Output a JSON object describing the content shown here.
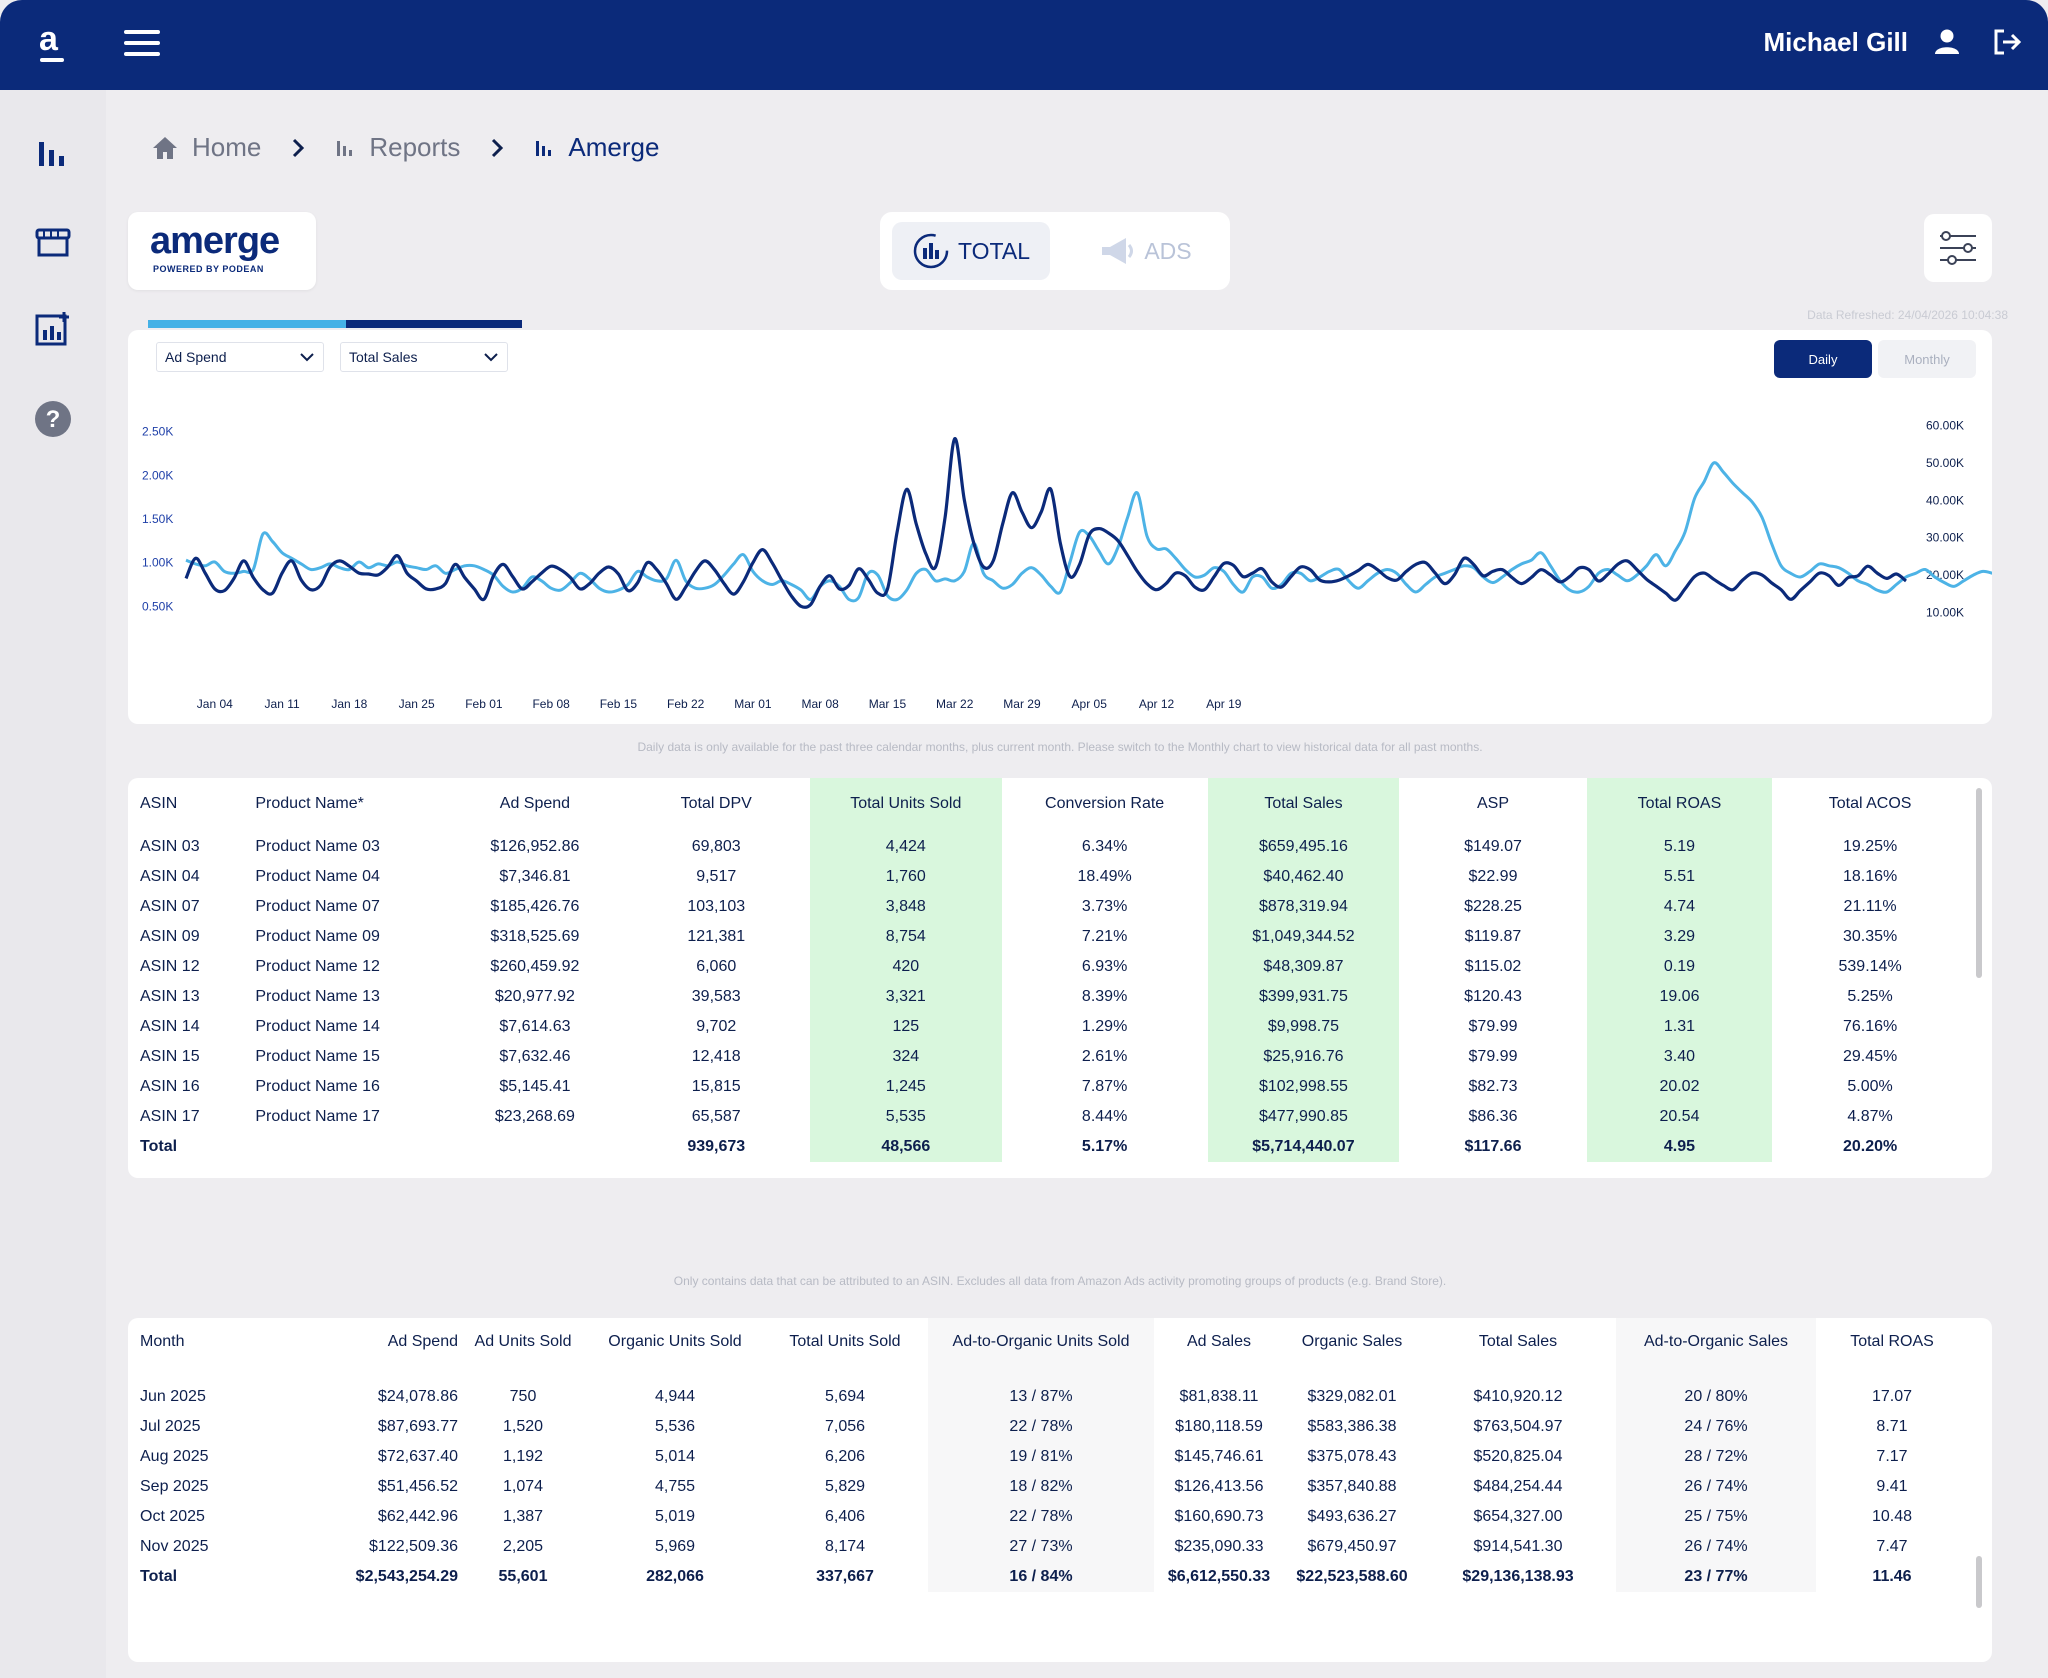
{
  "header": {
    "user_name": "Michael Gill"
  },
  "breadcrumb": {
    "home": "Home",
    "reports": "Reports",
    "current": "Amerge"
  },
  "brand": {
    "name": "amerge",
    "tagline": "POWERED BY PODEAN"
  },
  "view_toggle": {
    "total": "TOTAL",
    "ads": "ADS",
    "active": "TOTAL"
  },
  "data_refreshed": "Data Refreshed: 24/04/2026 10:04:38",
  "chart_controls": {
    "left_metric": "Ad Spend",
    "right_metric": "Total Sales",
    "daily": "Daily",
    "monthly": "Monthly",
    "active": "Daily"
  },
  "chart_data": {
    "type": "line",
    "x_labels": [
      "Jan 04",
      "Jan 11",
      "Jan 18",
      "Jan 25",
      "Feb 01",
      "Feb 08",
      "Feb 15",
      "Feb 22",
      "Mar 01",
      "Mar 08",
      "Mar 15",
      "Mar 22",
      "Mar 29",
      "Apr 05",
      "Apr 12",
      "Apr 19"
    ],
    "y_left_ticks": [
      "0.50K",
      "1.00K",
      "1.50K",
      "2.00K",
      "2.50K"
    ],
    "y_right_ticks": [
      "10.00K",
      "20.00K",
      "30.00K",
      "40.00K",
      "50.00K",
      "60.00K"
    ],
    "ylim_left": [
      0,
      3000
    ],
    "ylim_right": [
      0,
      70000
    ],
    "series": [
      {
        "name": "Ad Spend",
        "axis": "left",
        "color": "#0b2a7a",
        "values": [
          820,
          1050,
          880,
          700,
          680,
          820,
          1020,
          830,
          690,
          650,
          880,
          1020,
          800,
          690,
          740,
          950,
          1020,
          960,
          880,
          870,
          860,
          950,
          1080,
          880,
          790,
          700,
          700,
          760,
          980,
          830,
          700,
          580,
          850,
          980,
          840,
          700,
          780,
          880,
          960,
          920,
          830,
          700,
          760,
          880,
          950,
          870,
          680,
          770,
          1000,
          920,
          760,
          580,
          720,
          900,
          1020,
          920,
          760,
          640,
          780,
          1000,
          1150,
          1000,
          800,
          620,
          500,
          520,
          730,
          850,
          700,
          740,
          930,
          810,
          650,
          700,
          1350,
          1840,
          1440,
          1100,
          950,
          1520,
          2420,
          1720,
          1220,
          950,
          1020,
          1450,
          1800,
          1580,
          1400,
          1580,
          1840,
          1220,
          840,
          980,
          1320,
          1390,
          1340,
          1250,
          1080,
          900,
          760,
          690,
          760,
          880,
          850,
          720,
          690,
          840,
          990,
          970,
          840,
          880,
          930,
          780,
          720,
          840,
          950,
          920,
          800,
          780,
          800,
          850,
          910,
          980,
          920,
          830,
          800,
          900,
          980,
          1000,
          880,
          760,
          860,
          1050,
          980,
          850,
          900,
          920,
          830,
          760,
          830,
          920,
          860,
          780,
          840,
          940,
          920,
          790,
          870,
          980,
          1020,
          920,
          810,
          730,
          650,
          570,
          700,
          840,
          880,
          810,
          740,
          690,
          800,
          880,
          860,
          770,
          690,
          580,
          680,
          780,
          880,
          850,
          740,
          830,
          850,
          960,
          880,
          820,
          870,
          790
        ]
      },
      {
        "name": "Total Sales",
        "axis": "right",
        "color": "#4db3e6",
        "values": [
          24000,
          23000,
          22500,
          23500,
          21000,
          20500,
          21000,
          21500,
          31000,
          29000,
          26000,
          24500,
          23000,
          21500,
          22000,
          23000,
          22000,
          21500,
          23500,
          22000,
          23000,
          22500,
          23500,
          22500,
          22000,
          21500,
          22500,
          20500,
          21500,
          22500,
          22500,
          21500,
          20000,
          17000,
          15500,
          16500,
          19500,
          18500,
          16500,
          16000,
          18000,
          20500,
          19000,
          16500,
          15500,
          16000,
          17500,
          21000,
          19500,
          18500,
          19000,
          24000,
          18500,
          16500,
          16500,
          17500,
          20000,
          23000,
          25500,
          21000,
          18500,
          17500,
          18500,
          17500,
          16000,
          13500,
          17000,
          18500,
          17000,
          13500,
          14000,
          20500,
          20000,
          14500,
          13500,
          16000,
          20500,
          21500,
          18500,
          19000,
          18500,
          21000,
          28500,
          20500,
          18500,
          16500,
          17500,
          20500,
          22000,
          20000,
          17000,
          15500,
          23500,
          31500,
          30500,
          26500,
          23000,
          27500,
          35500,
          42000,
          30500,
          27000,
          27000,
          24500,
          21500,
          19500,
          20000,
          22000,
          21000,
          17500,
          15500,
          19500,
          19500,
          16500,
          17500,
          20500,
          20500,
          18500,
          19500,
          21000,
          21500,
          18500,
          16500,
          18500,
          20500,
          21500,
          20500,
          17500,
          15500,
          17500,
          19500,
          20500,
          21500,
          22500,
          22000,
          19500,
          18000,
          19500,
          21500,
          23000,
          24000,
          26000,
          22500,
          18500,
          16000,
          15500,
          17000,
          20500,
          21500,
          20000,
          18500,
          20000,
          22500,
          25500,
          22500,
          26500,
          31500,
          40500,
          45000,
          50000,
          47500,
          44500,
          42000,
          39500,
          35500,
          28500,
          22500,
          20500,
          19500,
          21000,
          23000,
          22500,
          22000,
          20500,
          18500,
          17500,
          16000,
          15500,
          17500,
          19500,
          20500,
          21500,
          19500,
          18000,
          17000,
          18500,
          20000,
          21000,
          20500,
          19500,
          18500,
          19000,
          20500,
          21500,
          22500
        ]
      }
    ]
  },
  "chart_note": "Daily data is only available for the past three calendar months, plus current month. Please switch to the Monthly chart to view historical data for all past months.",
  "products_table": {
    "columns": [
      "ASIN",
      "Product Name*",
      "Ad Spend",
      "Total DPV",
      "Total Units Sold",
      "Conversion Rate",
      "Total Sales",
      "ASP",
      "Total ROAS",
      "Total ACOS"
    ],
    "rows": [
      [
        "ASIN 03",
        "Product Name 03",
        "$126,952.86",
        "69,803",
        "4,424",
        "6.34%",
        "$659,495.16",
        "$149.07",
        "5.19",
        "19.25%"
      ],
      [
        "ASIN 04",
        "Product Name 04",
        "$7,346.81",
        "9,517",
        "1,760",
        "18.49%",
        "$40,462.40",
        "$22.99",
        "5.51",
        "18.16%"
      ],
      [
        "ASIN 07",
        "Product Name 07",
        "$185,426.76",
        "103,103",
        "3,848",
        "3.73%",
        "$878,319.94",
        "$228.25",
        "4.74",
        "21.11%"
      ],
      [
        "ASIN 09",
        "Product Name 09",
        "$318,525.69",
        "121,381",
        "8,754",
        "7.21%",
        "$1,049,344.52",
        "$119.87",
        "3.29",
        "30.35%"
      ],
      [
        "ASIN 12",
        "Product Name 12",
        "$260,459.92",
        "6,060",
        "420",
        "6.93%",
        "$48,309.87",
        "$115.02",
        "0.19",
        "539.14%"
      ],
      [
        "ASIN 13",
        "Product Name 13",
        "$20,977.92",
        "39,583",
        "3,321",
        "8.39%",
        "$399,931.75",
        "$120.43",
        "19.06",
        "5.25%"
      ],
      [
        "ASIN 14",
        "Product Name 14",
        "$7,614.63",
        "9,702",
        "125",
        "1.29%",
        "$9,998.75",
        "$79.99",
        "1.31",
        "76.16%"
      ],
      [
        "ASIN 15",
        "Product Name 15",
        "$7,632.46",
        "12,418",
        "324",
        "2.61%",
        "$25,916.76",
        "$79.99",
        "3.40",
        "29.45%"
      ],
      [
        "ASIN 16",
        "Product Name 16",
        "$5,145.41",
        "15,815",
        "1,245",
        "7.87%",
        "$102,998.55",
        "$82.73",
        "20.02",
        "5.00%"
      ],
      [
        "ASIN 17",
        "Product Name 17",
        "$23,268.69",
        "65,587",
        "5,535",
        "8.44%",
        "$477,990.85",
        "$86.36",
        "20.54",
        "4.87%"
      ]
    ],
    "total": [
      "Total",
      "",
      "",
      "939,673",
      "48,566",
      "5.17%",
      "$5,714,440.07",
      "$117.66",
      "4.95",
      "20.20%"
    ]
  },
  "products_note": "Only contains data that can be attributed to an ASIN. Excludes all data from Amazon Ads activity promoting groups of products (e.g. Brand Store).",
  "monthly_table": {
    "columns": [
      "Month",
      "Ad Spend",
      "Ad Units Sold",
      "Organic Units Sold",
      "Total Units Sold",
      "Ad-to-Organic Units Sold",
      "Ad Sales",
      "Organic Sales",
      "Total Sales",
      "Ad-to-Organic Sales",
      "Total ROAS"
    ],
    "rows": [
      [
        "Jun 2025",
        "$24,078.86",
        "750",
        "4,944",
        "5,694",
        "13 / 87%",
        "$81,838.11",
        "$329,082.01",
        "$410,920.12",
        "20 / 80%",
        "17.07"
      ],
      [
        "Jul 2025",
        "$87,693.77",
        "1,520",
        "5,536",
        "7,056",
        "22 / 78%",
        "$180,118.59",
        "$583,386.38",
        "$763,504.97",
        "24 / 76%",
        "8.71"
      ],
      [
        "Aug 2025",
        "$72,637.40",
        "1,192",
        "5,014",
        "6,206",
        "19 / 81%",
        "$145,746.61",
        "$375,078.43",
        "$520,825.04",
        "28 / 72%",
        "7.17"
      ],
      [
        "Sep 2025",
        "$51,456.52",
        "1,074",
        "4,755",
        "5,829",
        "18 / 82%",
        "$126,413.56",
        "$357,840.88",
        "$484,254.44",
        "26 / 74%",
        "9.41"
      ],
      [
        "Oct 2025",
        "$62,442.96",
        "1,387",
        "5,019",
        "6,406",
        "22 / 78%",
        "$160,690.73",
        "$493,636.27",
        "$654,327.00",
        "25 / 75%",
        "10.48"
      ],
      [
        "Nov 2025",
        "$122,509.36",
        "2,205",
        "5,969",
        "8,174",
        "27 / 73%",
        "$235,090.33",
        "$679,450.97",
        "$914,541.30",
        "26 / 74%",
        "7.47"
      ]
    ],
    "total": [
      "Total",
      "$2,543,254.29",
      "55,601",
      "282,066",
      "337,667",
      "16 / 84%",
      "$6,612,550.33",
      "$22,523,588.60",
      "$29,136,138.93",
      "23 / 77%",
      "11.46"
    ]
  }
}
